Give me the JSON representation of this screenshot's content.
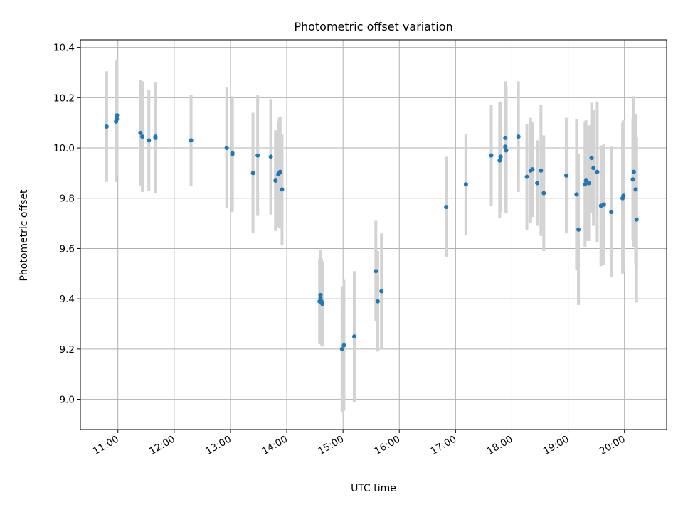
{
  "chart_data": {
    "type": "scatter",
    "title": "Photometric offset variation",
    "xlabel": "UTC time",
    "ylabel": "Photometric offset",
    "xlim": [
      "10:20",
      "20:45"
    ],
    "ylim": [
      8.88,
      10.43
    ],
    "grid": true,
    "colors": {
      "point": "#1f77b4",
      "errorbar": "#d3d3d3",
      "grid": "#b0b0b0"
    },
    "x_ticks": [
      "11:00",
      "12:00",
      "13:00",
      "14:00",
      "15:00",
      "16:00",
      "17:00",
      "18:00",
      "19:00",
      "20:00"
    ],
    "y_ticks": [
      "9.0",
      "9.2",
      "9.4",
      "9.6",
      "9.8",
      "10.0",
      "10.2",
      "10.4"
    ],
    "series": [
      {
        "x": [
          "10:48",
          "10:58",
          "10:59",
          "10:59",
          "11:24",
          "11:26",
          "11:33",
          "11:40",
          "11:40",
          "12:18",
          "12:56",
          "13:02",
          "13:02",
          "13:24",
          "13:29",
          "13:43",
          "13:48",
          "13:51",
          "13:52",
          "13:53",
          "13:55",
          "14:35",
          "14:36",
          "14:36",
          "14:37",
          "14:37",
          "14:38",
          "14:59",
          "15:01",
          "15:12",
          "15:35",
          "15:37",
          "15:41",
          "16:50",
          "17:11",
          "17:38",
          "17:47",
          "17:48",
          "17:53",
          "17:53",
          "17:54",
          "18:07",
          "18:16",
          "18:20",
          "18:22",
          "18:27",
          "18:31",
          "18:34",
          "18:58",
          "19:09",
          "19:11",
          "19:18",
          "19:19",
          "19:22",
          "19:25",
          "19:27",
          "19:31",
          "19:35",
          "19:38",
          "19:38",
          "19:46",
          "19:58",
          "19:59",
          "20:09",
          "20:10",
          "20:12",
          "20:13"
        ],
        "y": [
          10.085,
          10.105,
          10.13,
          10.115,
          10.06,
          10.045,
          10.03,
          10.045,
          10.04,
          10.03,
          10.0,
          9.975,
          9.98,
          9.9,
          9.97,
          9.965,
          9.87,
          9.895,
          9.9,
          9.905,
          9.835,
          9.39,
          9.405,
          9.415,
          9.39,
          9.385,
          9.38,
          9.2,
          9.215,
          9.25,
          9.51,
          9.39,
          9.43,
          9.765,
          9.855,
          9.97,
          9.95,
          9.965,
          10.04,
          10.005,
          9.99,
          10.045,
          9.885,
          9.91,
          9.915,
          9.86,
          9.91,
          9.82,
          9.89,
          9.815,
          9.675,
          9.855,
          9.87,
          9.86,
          9.96,
          9.92,
          9.905,
          9.77,
          9.775,
          9.775,
          9.745,
          9.8,
          9.81,
          9.875,
          9.905,
          9.835,
          9.715
        ],
        "yerr": [
          0.22,
          0.24,
          0.22,
          0.23,
          0.21,
          0.22,
          0.2,
          0.21,
          0.22,
          0.18,
          0.24,
          0.23,
          0.22,
          0.24,
          0.24,
          0.23,
          0.2,
          0.21,
          0.22,
          0.22,
          0.22,
          0.17,
          0.18,
          0.18,
          0.17,
          0.17,
          0.17,
          0.25,
          0.26,
          0.26,
          0.2,
          0.2,
          0.23,
          0.2,
          0.2,
          0.2,
          0.23,
          0.22,
          0.22,
          0.26,
          0.25,
          0.22,
          0.21,
          0.21,
          0.19,
          0.17,
          0.26,
          0.23,
          0.23,
          0.3,
          0.3,
          0.25,
          0.24,
          0.23,
          0.22,
          0.23,
          0.28,
          0.24,
          0.24,
          0.23,
          0.26,
          0.3,
          0.3,
          0.24,
          0.3,
          0.3,
          0.33
        ]
      }
    ]
  }
}
